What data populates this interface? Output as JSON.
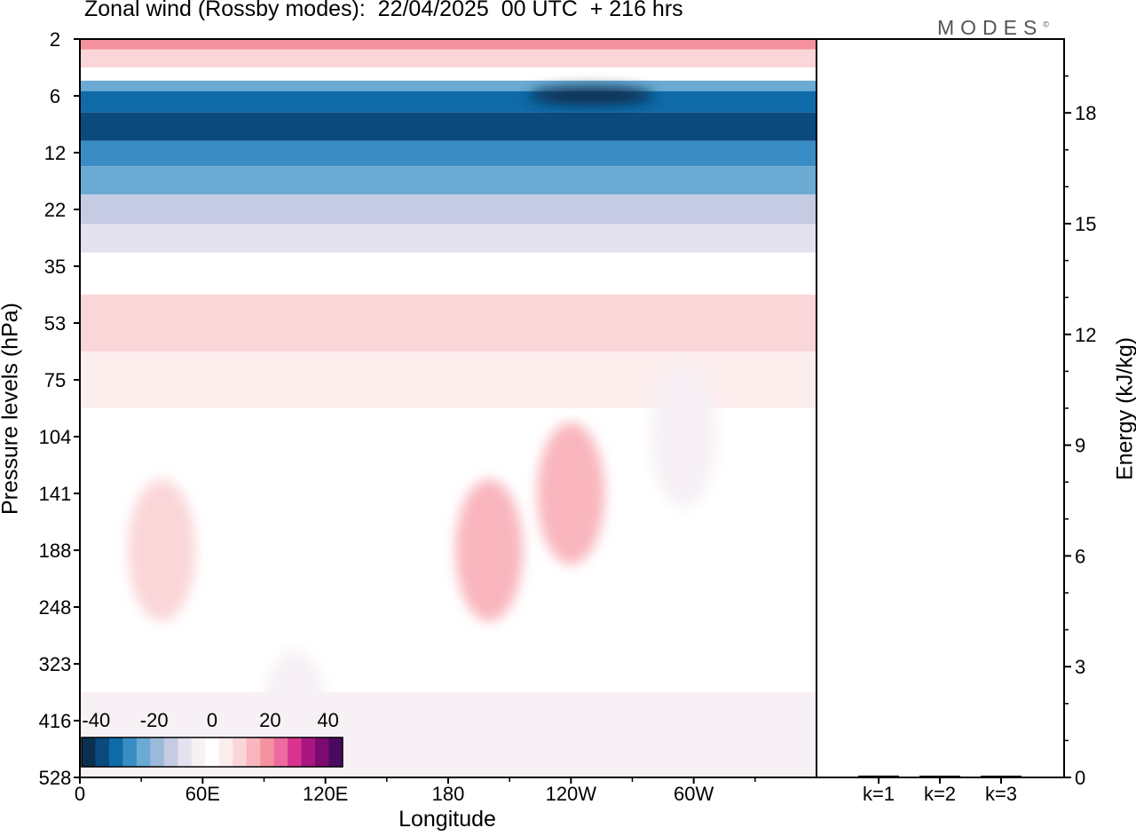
{
  "title": "Zonal wind (Rossby modes):  22/04/2025  00 UTC  + 216 hrs",
  "logo": "MODES",
  "logo_mark": "©",
  "chart_data": [
    {
      "type": "heatmap",
      "title": "Zonal wind (Rossby modes):  22/04/2025  00 UTC  + 216 hrs",
      "xlabel": "Longitude",
      "ylabel": "Pressure levels (hPa)",
      "x_ticks": [
        "0",
        "60E",
        "120E",
        "180",
        "120W",
        "60W"
      ],
      "x_tick_degrees": [
        0,
        60,
        120,
        180,
        240,
        300
      ],
      "xlim": [
        0,
        360
      ],
      "y_ticks": [
        "2",
        "6",
        "12",
        "22",
        "35",
        "53",
        "75",
        "104",
        "141",
        "188",
        "248",
        "323",
        "416",
        "528"
      ],
      "colorbar": {
        "tick_labels": [
          "-40",
          "-20",
          "0",
          "20",
          "40"
        ],
        "min": -45,
        "max": 45,
        "step": 5,
        "colors": [
          "#0a2f4f",
          "#0a4a7d",
          "#0f6aa8",
          "#3a8dc4",
          "#6aaad3",
          "#9bbad9",
          "#c5cbe3",
          "#e4e2ef",
          "#f7f1f6",
          "#ffffff",
          "#fdeeee",
          "#fbd6d8",
          "#f9b6be",
          "#f5929f",
          "#ef6aa0",
          "#d9338f",
          "#a81680",
          "#7c0a6f",
          "#4b0a5f"
        ]
      },
      "level_bands": [
        {
          "level": "2",
          "u": 22
        },
        {
          "level": "3",
          "u": 14
        },
        {
          "level": "4",
          "u": 1
        },
        {
          "level": "5",
          "u": -22
        },
        {
          "level": "6",
          "u": -32
        },
        {
          "level": "9",
          "u": -38
        },
        {
          "level": "12",
          "u": -30
        },
        {
          "level": "16",
          "u": -22
        },
        {
          "level": "22",
          "u": -14
        },
        {
          "level": "28",
          "u": -6
        },
        {
          "level": "35",
          "u": 3
        },
        {
          "level": "53",
          "u": 10
        },
        {
          "level": "75",
          "u": 7
        },
        {
          "level": "104",
          "u": 3
        },
        {
          "level": "141",
          "u": 3
        },
        {
          "level": "188",
          "u": 2
        },
        {
          "level": "248",
          "u": 1
        },
        {
          "level": "323",
          "u": 0
        },
        {
          "level": "416",
          "u": -1
        },
        {
          "level": "528",
          "u": -1
        }
      ],
      "features": [
        {
          "lon": 40,
          "level": "188",
          "u": 14
        },
        {
          "lon": 200,
          "level": "188",
          "u": 15
        },
        {
          "lon": 240,
          "level": "141",
          "u": 16
        },
        {
          "lon": 105,
          "level": "416",
          "u": -4
        },
        {
          "lon": 295,
          "level": "104",
          "u": -3
        },
        {
          "lon": 250,
          "level": "6",
          "u": -43
        }
      ]
    },
    {
      "type": "bar",
      "categories": [
        "k=1",
        "k=2",
        "k=3"
      ],
      "values": [
        0.05,
        0.03,
        0.03
      ],
      "ylabel": "Energy (kJ/kg)",
      "y_ticks": [
        "0",
        "3",
        "6",
        "9",
        "12",
        "15",
        "18"
      ],
      "ylim": [
        0,
        20
      ]
    }
  ]
}
